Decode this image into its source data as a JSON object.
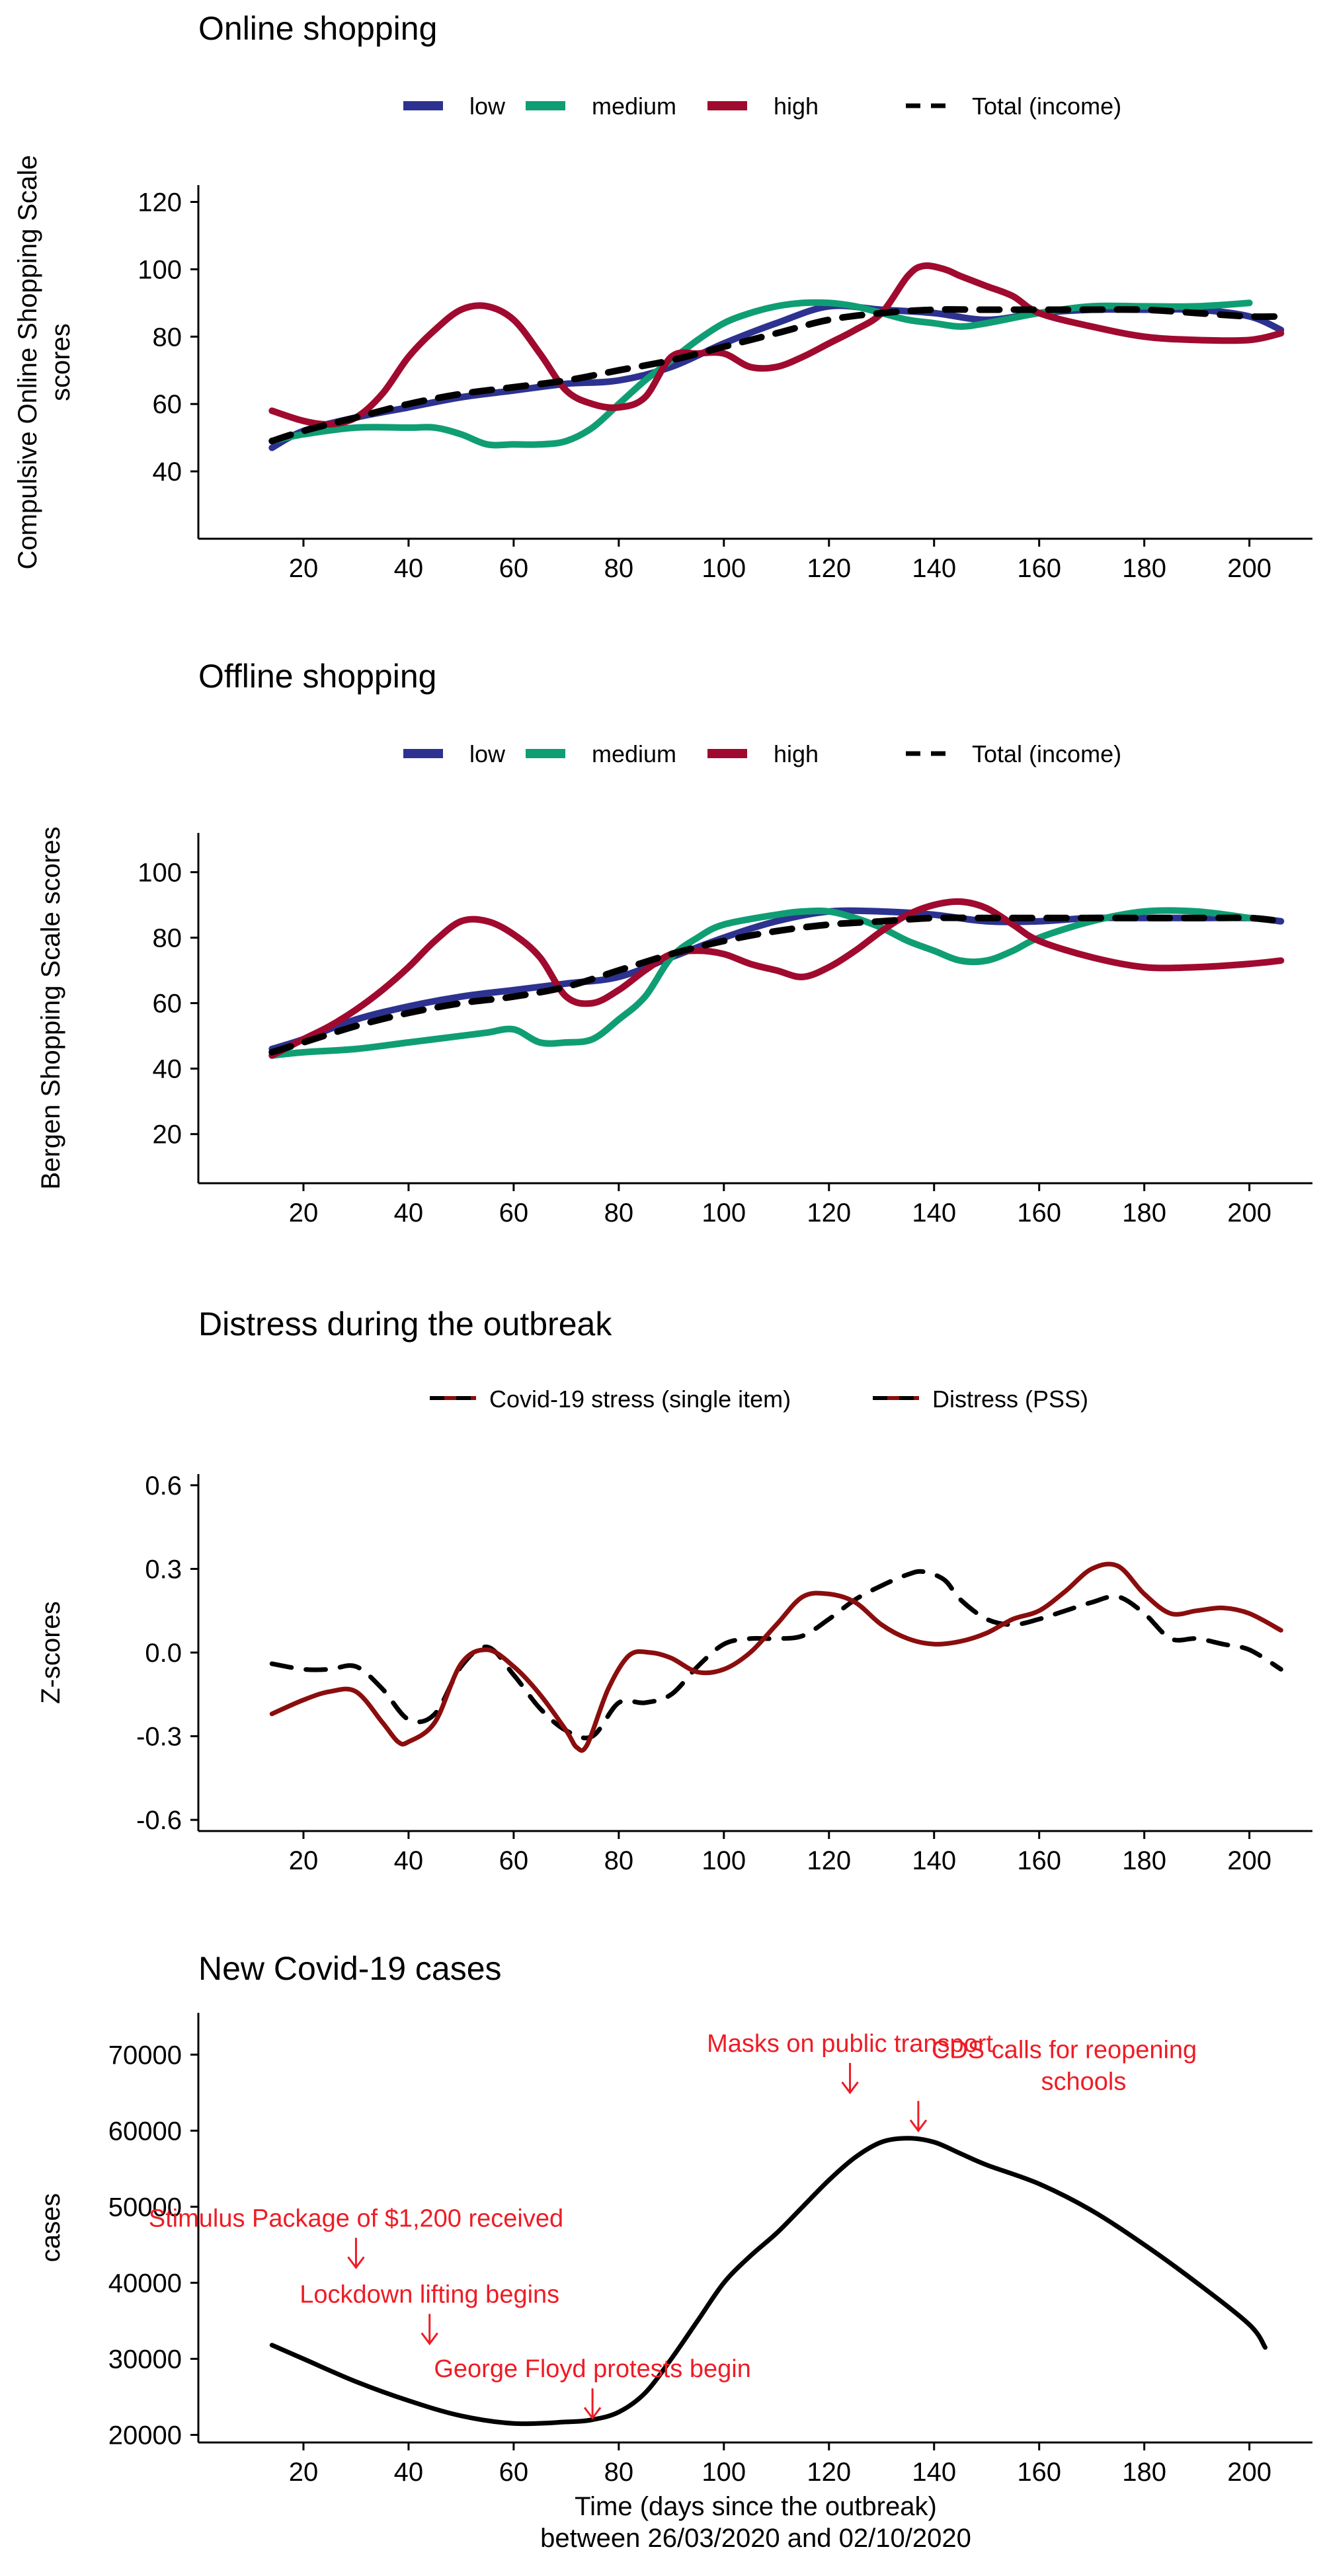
{
  "chart_data": [
    {
      "type": "line",
      "title": "Online shopping",
      "ylabel": [
        "Compulsive Online Shopping Scale",
        "scores"
      ],
      "xlabel": "",
      "xlim": [
        0,
        212
      ],
      "ylim": [
        20,
        125
      ],
      "xticks": [
        20,
        40,
        60,
        80,
        100,
        120,
        140,
        160,
        180,
        200
      ],
      "yticks": [
        40,
        60,
        80,
        100,
        120
      ],
      "grid": false,
      "legend_position": "top",
      "series": [
        {
          "name": "low",
          "color": "#2d3290",
          "dash": "solid",
          "x": [
            14,
            20,
            30,
            40,
            50,
            60,
            70,
            80,
            90,
            100,
            110,
            120,
            130,
            140,
            150,
            160,
            170,
            180,
            190,
            200,
            206
          ],
          "y": [
            47,
            52,
            56,
            59,
            62,
            64,
            66,
            67,
            71,
            78,
            84,
            89,
            88,
            87,
            85,
            87,
            88,
            88,
            88,
            86,
            82
          ]
        },
        {
          "name": "medium",
          "color": "#0f9e73",
          "dash": "solid",
          "x": [
            14,
            20,
            30,
            40,
            45,
            50,
            55,
            60,
            65,
            70,
            75,
            80,
            85,
            90,
            95,
            100,
            105,
            110,
            115,
            120,
            125,
            130,
            135,
            140,
            145,
            150,
            160,
            170,
            180,
            190,
            200
          ],
          "y": [
            49,
            51,
            53,
            53,
            53,
            51,
            48,
            48,
            48,
            49,
            53,
            60,
            67,
            73,
            79,
            84,
            87,
            89,
            90,
            90,
            89,
            87,
            85,
            84,
            83,
            84,
            87,
            89,
            89,
            89,
            90
          ]
        },
        {
          "name": "high",
          "color": "#a00a2e",
          "dash": "solid",
          "x": [
            14,
            20,
            25,
            30,
            35,
            40,
            45,
            50,
            55,
            60,
            65,
            70,
            75,
            80,
            85,
            90,
            95,
            100,
            105,
            110,
            115,
            120,
            125,
            130,
            135,
            138,
            142,
            145,
            150,
            155,
            160,
            170,
            180,
            190,
            200,
            206
          ],
          "y": [
            58,
            55,
            54,
            56,
            63,
            74,
            82,
            88,
            89,
            85,
            75,
            64,
            60,
            59,
            62,
            74,
            75,
            75,
            71,
            71,
            74,
            78,
            82,
            87,
            98,
            101,
            100,
            98,
            95,
            92,
            87,
            83,
            80,
            79,
            79,
            81
          ]
        },
        {
          "name": "Total (income)",
          "color": "#000000",
          "dash": "dashed",
          "x": [
            14,
            20,
            30,
            40,
            50,
            60,
            70,
            80,
            90,
            100,
            110,
            120,
            130,
            140,
            150,
            160,
            170,
            180,
            190,
            200,
            206
          ],
          "y": [
            49,
            52,
            56,
            60,
            63,
            65,
            67,
            70,
            73,
            77,
            81,
            85,
            87,
            88,
            88,
            88,
            88,
            88,
            87,
            86,
            86
          ]
        }
      ]
    },
    {
      "type": "line",
      "title": "Offline shopping",
      "ylabel": [
        "Bergen Shopping Scale scores"
      ],
      "xlabel": "",
      "xlim": [
        0,
        212
      ],
      "ylim": [
        5,
        112
      ],
      "xticks": [
        20,
        40,
        60,
        80,
        100,
        120,
        140,
        160,
        180,
        200
      ],
      "yticks": [
        20,
        40,
        60,
        80,
        100
      ],
      "grid": false,
      "legend_position": "top",
      "series": [
        {
          "name": "low",
          "color": "#2d3290",
          "dash": "solid",
          "x": [
            14,
            20,
            30,
            40,
            50,
            60,
            70,
            80,
            90,
            100,
            110,
            120,
            130,
            140,
            150,
            160,
            170,
            180,
            190,
            200,
            206
          ],
          "y": [
            46,
            49,
            55,
            59,
            62,
            64,
            66,
            68,
            74,
            80,
            85,
            88,
            88,
            87,
            85,
            85,
            86,
            86,
            86,
            86,
            85
          ]
        },
        {
          "name": "medium",
          "color": "#0f9e73",
          "dash": "solid",
          "x": [
            14,
            20,
            30,
            40,
            50,
            55,
            60,
            65,
            70,
            75,
            80,
            85,
            90,
            95,
            100,
            110,
            115,
            120,
            125,
            130,
            135,
            140,
            145,
            150,
            155,
            160,
            170,
            180,
            190,
            200
          ],
          "y": [
            44,
            45,
            46,
            48,
            50,
            51,
            52,
            48,
            48,
            49,
            55,
            62,
            74,
            80,
            84,
            87,
            88,
            88,
            86,
            83,
            79,
            76,
            73,
            73,
            76,
            80,
            85,
            88,
            88,
            86
          ]
        },
        {
          "name": "high",
          "color": "#a00a2e",
          "dash": "solid",
          "x": [
            14,
            20,
            25,
            30,
            35,
            40,
            45,
            50,
            55,
            60,
            65,
            70,
            75,
            80,
            85,
            90,
            95,
            100,
            105,
            110,
            115,
            120,
            125,
            130,
            135,
            140,
            145,
            150,
            155,
            160,
            170,
            180,
            190,
            200,
            206
          ],
          "y": [
            44,
            49,
            53,
            58,
            64,
            71,
            79,
            85,
            85,
            81,
            74,
            62,
            60,
            64,
            70,
            75,
            76,
            75,
            72,
            70,
            68,
            71,
            76,
            82,
            87,
            90,
            91,
            89,
            84,
            79,
            74,
            71,
            71,
            72,
            73
          ]
        },
        {
          "name": "Total (income)",
          "color": "#000000",
          "dash": "dashed",
          "x": [
            14,
            20,
            30,
            40,
            50,
            60,
            70,
            80,
            90,
            100,
            110,
            120,
            130,
            140,
            150,
            160,
            170,
            180,
            190,
            200,
            206
          ],
          "y": [
            45,
            48,
            53,
            57,
            60,
            62,
            65,
            70,
            75,
            79,
            82,
            84,
            85,
            86,
            86,
            86,
            86,
            86,
            86,
            86,
            85
          ]
        }
      ]
    },
    {
      "type": "line",
      "title": "Distress during the outbreak",
      "ylabel": [
        "Z-scores"
      ],
      "xlabel": "",
      "xlim": [
        0,
        212
      ],
      "ylim": [
        -0.64,
        0.64
      ],
      "xticks": [
        20,
        40,
        60,
        80,
        100,
        120,
        140,
        160,
        180,
        200
      ],
      "yticks": [
        -0.6,
        -0.3,
        0.0,
        0.3,
        0.6
      ],
      "ytick_labels": [
        "-0.6",
        "-0.3",
        "0.0",
        "0.3",
        "0.6"
      ],
      "grid": false,
      "legend_position": "top",
      "series": [
        {
          "name": "Covid-19 stress (single item)",
          "color": "#000000",
          "dash": "dashed",
          "x": [
            14,
            20,
            25,
            30,
            35,
            40,
            45,
            50,
            55,
            60,
            65,
            70,
            75,
            80,
            85,
            90,
            95,
            100,
            105,
            110,
            115,
            120,
            125,
            130,
            135,
            138,
            142,
            145,
            150,
            155,
            160,
            165,
            170,
            175,
            180,
            185,
            190,
            195,
            200,
            206
          ],
          "y": [
            -0.04,
            -0.06,
            -0.06,
            -0.05,
            -0.13,
            -0.24,
            -0.22,
            -0.05,
            0.02,
            -0.08,
            -0.2,
            -0.28,
            -0.3,
            -0.18,
            -0.18,
            -0.15,
            -0.05,
            0.03,
            0.05,
            0.05,
            0.06,
            0.12,
            0.19,
            0.24,
            0.28,
            0.29,
            0.26,
            0.19,
            0.12,
            0.1,
            0.12,
            0.15,
            0.18,
            0.2,
            0.14,
            0.05,
            0.05,
            0.03,
            0.01,
            -0.06
          ]
        },
        {
          "name": "Distress (PSS)",
          "color": "#8b0d0d",
          "dash": "solid",
          "x": [
            14,
            20,
            25,
            30,
            35,
            38,
            40,
            45,
            50,
            55,
            60,
            65,
            70,
            72,
            74,
            78,
            82,
            86,
            90,
            95,
            100,
            105,
            110,
            115,
            120,
            125,
            130,
            135,
            140,
            145,
            150,
            155,
            160,
            165,
            170,
            175,
            180,
            185,
            190,
            195,
            200,
            206
          ],
          "y": [
            -0.22,
            -0.17,
            -0.14,
            -0.14,
            -0.25,
            -0.32,
            -0.32,
            -0.25,
            -0.04,
            0.01,
            -0.05,
            -0.15,
            -0.28,
            -0.34,
            -0.33,
            -0.13,
            -0.01,
            0.0,
            -0.02,
            -0.07,
            -0.06,
            0.0,
            0.1,
            0.2,
            0.21,
            0.18,
            0.1,
            0.05,
            0.03,
            0.04,
            0.07,
            0.12,
            0.15,
            0.22,
            0.3,
            0.31,
            0.21,
            0.14,
            0.15,
            0.16,
            0.14,
            0.08
          ]
        }
      ]
    },
    {
      "type": "line",
      "title": "New Covid-19 cases",
      "ylabel": [
        "cases"
      ],
      "xlabel": [
        "Time (days since the outbreak)",
        "between 26/03/2020 and 02/10/2020"
      ],
      "xlim": [
        0,
        212
      ],
      "ylim": [
        19000,
        75500
      ],
      "xticks": [
        20,
        40,
        60,
        80,
        100,
        120,
        140,
        160,
        180,
        200
      ],
      "yticks": [
        20000,
        30000,
        40000,
        50000,
        60000,
        70000
      ],
      "grid": false,
      "series": [
        {
          "name": "",
          "color": "#000000",
          "dash": "solid",
          "x": [
            14,
            20,
            30,
            40,
            50,
            60,
            70,
            75,
            80,
            85,
            90,
            95,
            100,
            105,
            110,
            115,
            120,
            125,
            130,
            135,
            140,
            145,
            150,
            160,
            170,
            180,
            190,
            200,
            203
          ],
          "y": [
            31800,
            30000,
            27000,
            24500,
            22500,
            21500,
            21700,
            22000,
            23000,
            25500,
            30000,
            35000,
            40000,
            43500,
            46500,
            50000,
            53500,
            56500,
            58500,
            59000,
            58500,
            57000,
            55500,
            53000,
            49500,
            45000,
            40000,
            34500,
            31500
          ]
        }
      ],
      "annotations": [
        {
          "lines": [
            "Stimulus Package of $1,200 received"
          ],
          "x": 30,
          "y": 42000
        },
        {
          "lines": [
            "Lockdown lifting begins"
          ],
          "x": 44,
          "y": 32000
        },
        {
          "lines": [
            "George Floyd protests begin"
          ],
          "x": 75,
          "y": 22200
        },
        {
          "lines": [
            "Masks on public transport"
          ],
          "x": 124,
          "y": 65000
        },
        {
          "lines": [
            "CDS calls for reopening",
            "schools"
          ],
          "x": 137,
          "y": 60000
        }
      ]
    }
  ]
}
